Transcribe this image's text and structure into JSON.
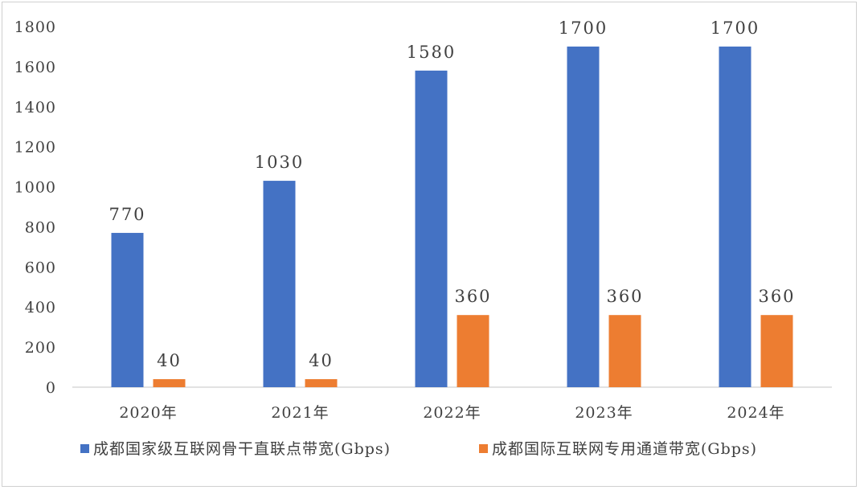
{
  "chart_data": {
    "type": "bar",
    "categories": [
      "2020年",
      "2021年",
      "2022年",
      "2023年",
      "2024年"
    ],
    "series": [
      {
        "name": "成都国家级互联网骨干直联点带宽(Gbps)",
        "values": [
          770,
          1030,
          1580,
          1700,
          1700
        ],
        "color": "#4472C4"
      },
      {
        "name": "成都国际互联网专用通道带宽(Gbps)",
        "values": [
          40,
          40,
          360,
          360,
          360
        ],
        "color": "#ED7D31"
      }
    ],
    "y_ticks": [
      "0",
      "200",
      "400",
      "600",
      "800",
      "1000",
      "1200",
      "1400",
      "1600",
      "1800"
    ],
    "ylim": [
      0,
      1800
    ],
    "grid": false,
    "legend": "bottom",
    "title": "",
    "xlabel": "",
    "ylabel": ""
  }
}
